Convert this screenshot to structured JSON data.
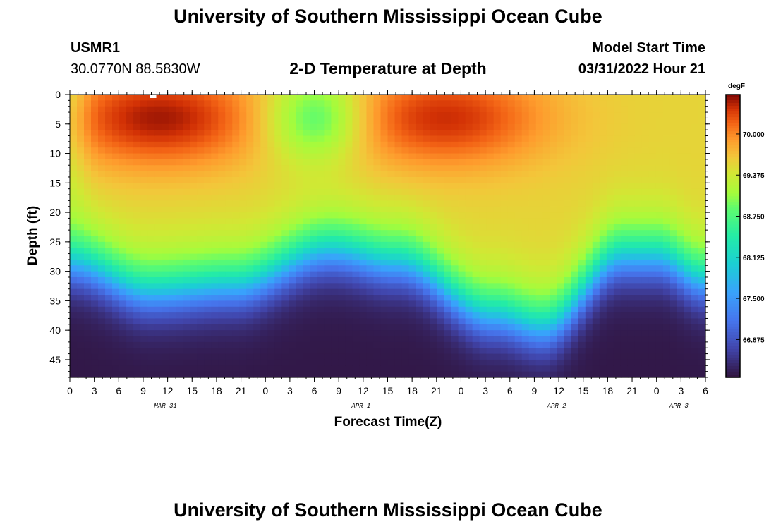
{
  "page": {
    "title": "University of Southern Mississippi Ocean Cube",
    "title_repeat": "University of Southern Mississippi Ocean Cube",
    "station_id": "USMR1",
    "coordinates": "30.0770N  88.5830W",
    "subtitle": "2-D Temperature at Depth",
    "model_start_label": "Model Start Time",
    "model_start_value": "03/31/2022 Hour 21"
  },
  "chart_data": {
    "type": "heatmap",
    "title": "2-D Temperature at Depth",
    "xlabel": "Forecast Time(Z)",
    "ylabel": "Depth (ft)",
    "colorbar_unit": "degF",
    "x_hours": [
      0,
      78
    ],
    "x_tick_labels": [
      "0",
      "3",
      "6",
      "9",
      "12",
      "15",
      "18",
      "21",
      "0",
      "3",
      "6",
      "9",
      "12",
      "15",
      "18",
      "21",
      "0",
      "3",
      "6",
      "9",
      "12",
      "15",
      "18",
      "21",
      "0",
      "3",
      "6"
    ],
    "date_labels": [
      {
        "label": "MAR 31",
        "hour": 12
      },
      {
        "label": "APR 1",
        "hour": 36
      },
      {
        "label": "APR 2",
        "hour": 60
      },
      {
        "label": "APR 3",
        "hour": 75
      }
    ],
    "y_ticks": [
      0,
      5,
      10,
      15,
      20,
      25,
      30,
      35,
      40,
      45
    ],
    "y_range": [
      0,
      48
    ],
    "colorbar_ticks": [
      70.0,
      69.375,
      68.75,
      68.125,
      67.5,
      66.875
    ],
    "colorbar_ticks_text": [
      "70.000",
      "69.375",
      "68.750",
      "68.125",
      "67.500",
      "66.875"
    ],
    "color_range": [
      66.3,
      70.6
    ],
    "thermocline_depth_ft": [
      {
        "hour": 0,
        "depth": 29
      },
      {
        "hour": 10,
        "depth": 34
      },
      {
        "hour": 20,
        "depth": 33
      },
      {
        "hour": 32,
        "depth": 27
      },
      {
        "hour": 40,
        "depth": 29
      },
      {
        "hour": 52,
        "depth": 38
      },
      {
        "hour": 58,
        "depth": 40
      },
      {
        "hour": 68,
        "depth": 28
      },
      {
        "hour": 72,
        "depth": 28
      },
      {
        "hour": 78,
        "depth": 32
      }
    ],
    "surface_hot_spots": [
      {
        "hour": 11,
        "depth": 4,
        "temp": 70.5
      },
      {
        "hour": 46,
        "depth": 4,
        "temp": 70.4
      }
    ],
    "surface_cool_spots": [
      {
        "hour": 30,
        "depth": 4,
        "temp": 68.9
      }
    ]
  }
}
